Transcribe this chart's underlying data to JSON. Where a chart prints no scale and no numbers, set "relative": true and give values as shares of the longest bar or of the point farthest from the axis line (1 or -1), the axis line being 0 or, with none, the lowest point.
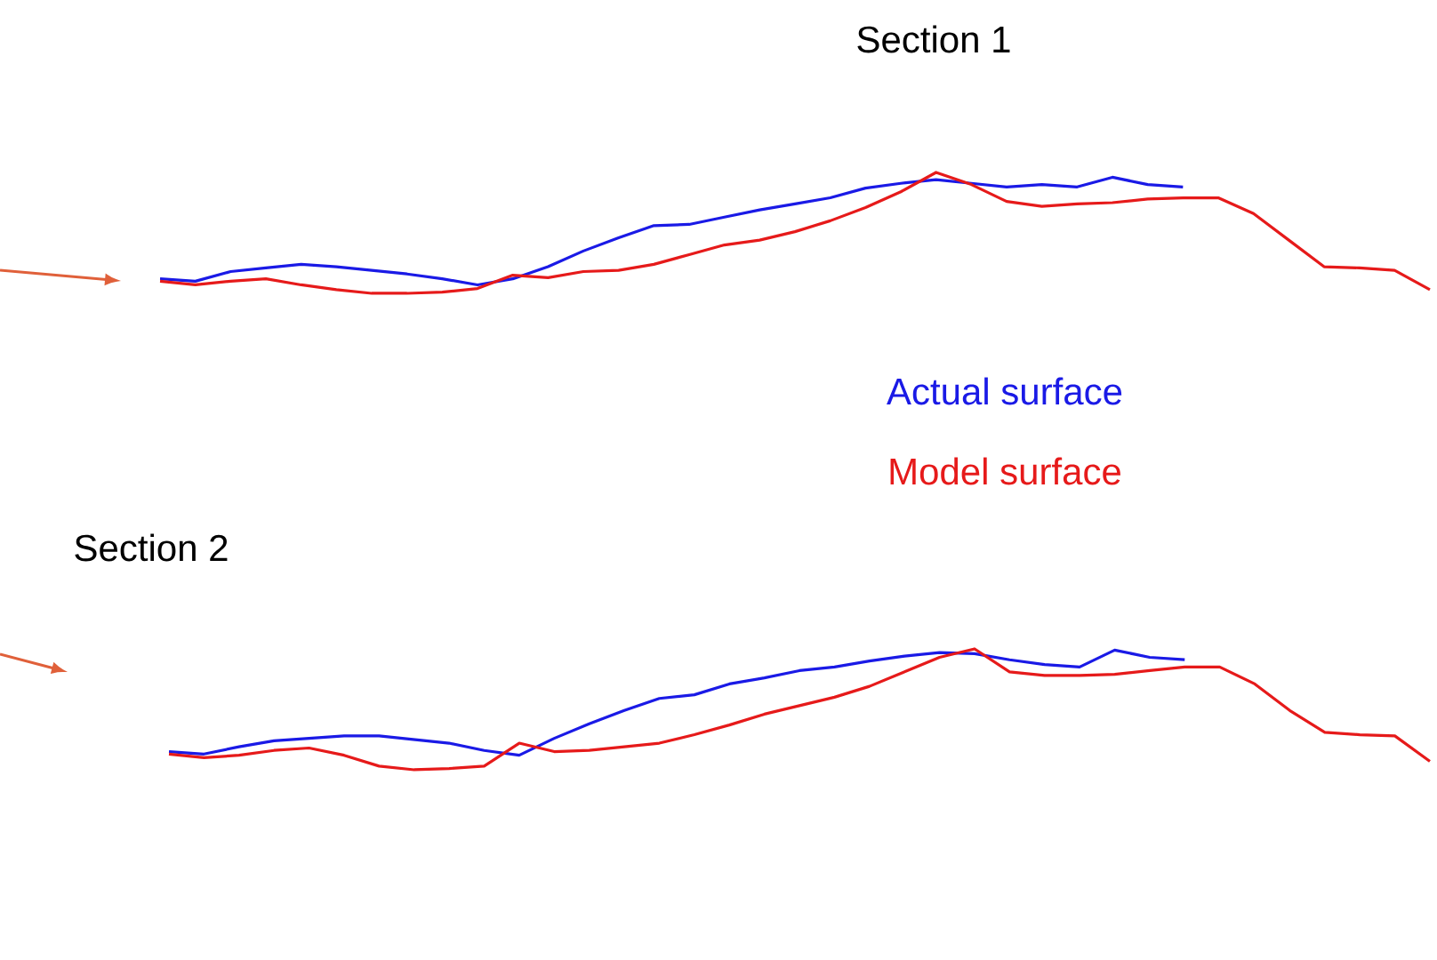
{
  "chart_data": [
    {
      "type": "line",
      "title": "Section 1",
      "relative": true,
      "legend": "bottom",
      "categories": [
        null,
        null,
        null,
        null,
        null,
        null,
        null,
        null,
        null,
        null,
        null,
        null,
        null,
        null,
        null,
        null,
        null,
        null,
        null,
        null,
        null,
        null,
        null,
        null,
        null,
        null,
        null,
        null,
        null,
        null,
        null,
        null,
        null,
        null,
        null,
        null,
        null
      ],
      "series": [
        {
          "name": "Actual surface",
          "color": "#1a1ae6",
          "values": [
            0.12,
            0.1,
            0.18,
            0.21,
            0.24,
            0.22,
            0.19,
            0.16,
            0.12,
            0.07,
            0.12,
            0.22,
            0.35,
            0.46,
            0.56,
            0.57,
            0.63,
            0.69,
            0.74,
            0.79,
            0.87,
            0.91,
            0.94,
            0.91,
            0.88,
            0.9,
            0.88,
            0.96,
            0.9,
            0.88,
            null,
            null,
            null,
            null,
            null,
            null,
            null
          ]
        },
        {
          "name": "Model surface",
          "color": "#e61a1a",
          "values": [
            0.1,
            0.07,
            0.1,
            0.12,
            0.07,
            0.03,
            0,
            0,
            0.01,
            0.04,
            0.15,
            0.13,
            0.18,
            0.19,
            0.24,
            0.32,
            0.4,
            0.44,
            0.51,
            0.6,
            0.71,
            0.84,
            1,
            0.9,
            0.76,
            0.72,
            0.74,
            0.75,
            0.78,
            0.79,
            0.79,
            0.66,
            0.44,
            0.22,
            0.21,
            0.19,
            0.03
          ]
        }
      ]
    },
    {
      "type": "line",
      "title": "Section 2",
      "relative": true,
      "categories": [
        null,
        null,
        null,
        null,
        null,
        null,
        null,
        null,
        null,
        null,
        null,
        null,
        null,
        null,
        null,
        null,
        null,
        null,
        null,
        null,
        null,
        null,
        null,
        null,
        null,
        null,
        null,
        null,
        null,
        null,
        null,
        null,
        null,
        null,
        null,
        null,
        null
      ],
      "series": [
        {
          "color": "#1a1ae6",
          "values": [
            0.15,
            0.13,
            0.19,
            0.24,
            0.26,
            0.28,
            0.28,
            0.25,
            0.22,
            0.16,
            0.12,
            0.26,
            0.38,
            0.49,
            0.59,
            0.62,
            0.71,
            0.76,
            0.82,
            0.85,
            0.9,
            0.94,
            0.97,
            0.96,
            0.91,
            0.87,
            0.85,
            0.99,
            0.93,
            0.91,
            null,
            null,
            null,
            null,
            null,
            null,
            null
          ]
        },
        {
          "color": "#e61a1a",
          "values": [
            0.13,
            0.1,
            0.12,
            0.16,
            0.18,
            0.12,
            0.03,
            0,
            0.01,
            0.03,
            0.22,
            0.15,
            0.16,
            0.19,
            0.22,
            0.29,
            0.37,
            0.46,
            0.53,
            0.6,
            0.69,
            0.81,
            0.93,
            1,
            0.81,
            0.78,
            0.78,
            0.79,
            0.82,
            0.85,
            0.85,
            0.71,
            0.49,
            0.31,
            0.29,
            0.28,
            0.07
          ]
        }
      ]
    }
  ]
}
